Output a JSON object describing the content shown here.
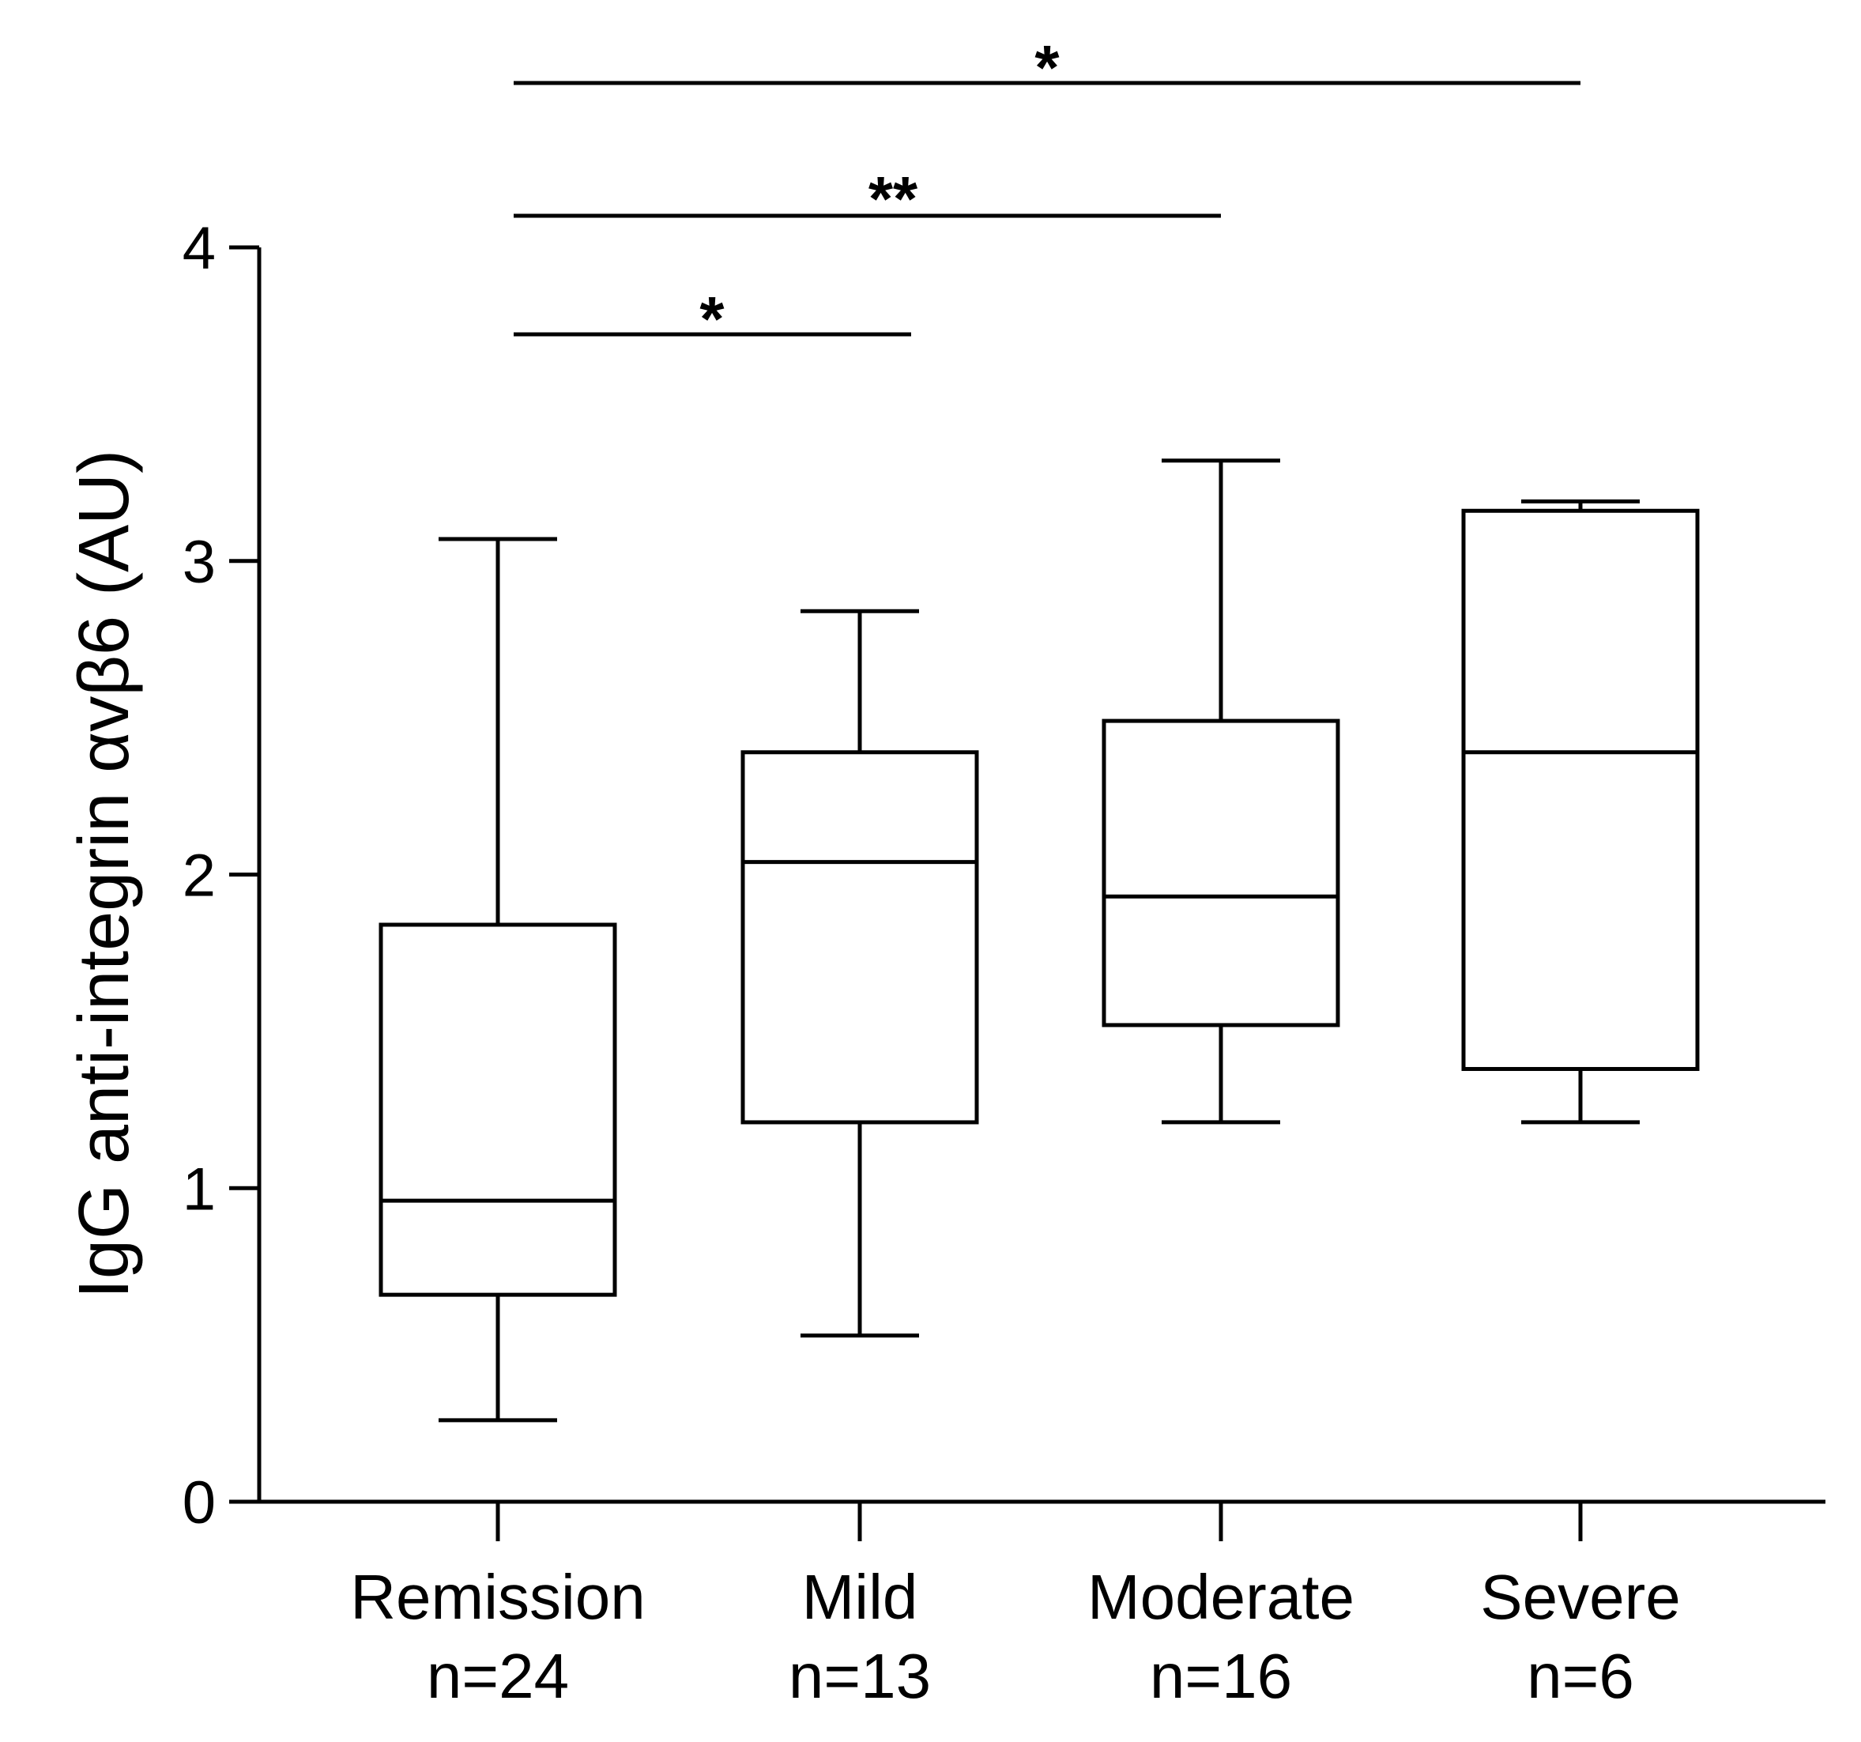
{
  "chart_data": {
    "type": "box",
    "title": "",
    "xlabel": "",
    "ylabel": "IgG anti-integrin αvβ6 (AU)",
    "ylim": [
      0,
      4
    ],
    "yticks": [
      "0",
      "1",
      "2",
      "3",
      "4"
    ],
    "categories": [
      {
        "name": "Remission",
        "n_label": "n=24",
        "whisker_low": 0.26,
        "q1": 0.66,
        "median": 0.96,
        "q3": 1.84,
        "whisker_high": 3.07
      },
      {
        "name": "Mild",
        "n_label": "n=13",
        "whisker_low": 0.53,
        "q1": 1.21,
        "median": 2.04,
        "q3": 2.39,
        "whisker_high": 2.84
      },
      {
        "name": "Moderate",
        "n_label": "n=16",
        "whisker_low": 1.21,
        "q1": 1.52,
        "median": 1.93,
        "q3": 2.49,
        "whisker_high": 3.32
      },
      {
        "name": "Severe",
        "n_label": "n=6",
        "whisker_low": 1.21,
        "q1": 1.38,
        "median": 2.39,
        "q3": 3.16,
        "whisker_high": 3.19
      }
    ],
    "significance": [
      {
        "from": 0,
        "to": 1,
        "label": "*"
      },
      {
        "from": 0,
        "to": 2,
        "label": "**"
      },
      {
        "from": 0,
        "to": 3,
        "label": "*"
      }
    ]
  }
}
